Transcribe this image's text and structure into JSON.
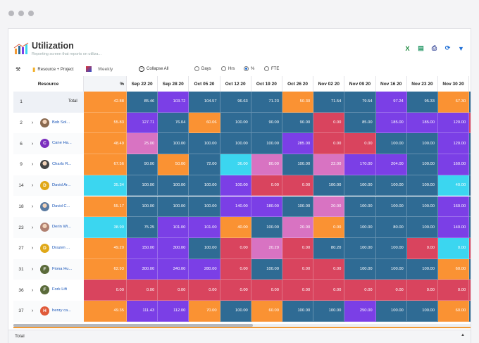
{
  "header": {
    "title": "Utilization",
    "subtitle": "Reporting screen that reports on utiliza..."
  },
  "toolbar": {
    "group_by": "Resource + Project",
    "period": "Weekly",
    "collapse": "Collapse All",
    "units": [
      "Days",
      "Hrs",
      "%",
      "FTE"
    ],
    "selected_unit": "%"
  },
  "grid": {
    "col_resource": "Resource",
    "col_pct": "%",
    "weeks": [
      "Sep 22 20",
      "Sep 28 20",
      "Oct 05 20",
      "Oct 12 20",
      "Oct 19 20",
      "Oct 26 20",
      "Nov 02 20",
      "Nov 09 20",
      "Nov 16 20",
      "Nov 23 20",
      "Nov 30 20",
      "D"
    ],
    "rows": [
      {
        "num": "1",
        "total": true,
        "label": "Total",
        "pct": "42.88",
        "values": [
          "85.46",
          "103.72",
          "104.57",
          "96.63",
          "71.23",
          "50.30",
          "71.54",
          "79.54",
          "97.24",
          "95.33",
          "67.30",
          ""
        ],
        "colors": [
          "teal",
          "purple",
          "teal",
          "teal",
          "teal",
          "orange",
          "teal",
          "teal",
          "purple",
          "teal",
          "orange",
          "teal"
        ]
      },
      {
        "num": "2",
        "label": "Bob Sol...",
        "avatar": "photo",
        "avatar_color": "#8a6a50",
        "pct": "55.83",
        "values": [
          "127.71",
          "76.04",
          "60.06",
          "100.00",
          "90.00",
          "90.00",
          "0.00",
          "85.00",
          "185.00",
          "185.00",
          "120.00",
          ""
        ],
        "colors": [
          "purple",
          "teal",
          "orange",
          "teal",
          "teal",
          "teal",
          "red",
          "teal",
          "purple",
          "purple",
          "purple",
          "red"
        ]
      },
      {
        "num": "6",
        "label": "Cane Ha...",
        "avatar": "C",
        "avatar_color": "#7b2fbe",
        "pct": "48.49",
        "values": [
          "25.00",
          "100.00",
          "100.00",
          "100.00",
          "100.00",
          "285.00",
          "0.00",
          "0.00",
          "100.00",
          "100.00",
          "120.00",
          ""
        ],
        "colors": [
          "pink",
          "teal",
          "teal",
          "teal",
          "teal",
          "purple",
          "red",
          "red",
          "teal",
          "teal",
          "purple",
          "teal"
        ]
      },
      {
        "num": "9",
        "label": "Charls R...",
        "avatar": "photo",
        "avatar_color": "#444",
        "pct": "67.56",
        "values": [
          "90.00",
          "50.00",
          "72.00",
          "36.00",
          "80.00",
          "100.00",
          "22.00",
          "170.00",
          "204.00",
          "100.00",
          "160.00",
          ""
        ],
        "colors": [
          "teal",
          "orange",
          "teal",
          "cyan",
          "pink",
          "teal",
          "pink",
          "purple",
          "purple",
          "teal",
          "purple",
          "teal"
        ]
      },
      {
        "num": "14",
        "label": "David Ar...",
        "avatar": "D",
        "avatar_color": "#e0a818",
        "pct": "35.34",
        "values": [
          "100.00",
          "100.00",
          "100.00",
          "100.00",
          "0.00",
          "0.00",
          "100.00",
          "100.00",
          "100.00",
          "100.00",
          "40.00",
          ""
        ],
        "colors": [
          "teal",
          "teal",
          "teal",
          "purple",
          "red",
          "red",
          "teal",
          "teal",
          "teal",
          "teal",
          "cyan",
          "teal"
        ]
      },
      {
        "num": "18",
        "label": "David C...",
        "avatar": "photo",
        "avatar_color": "#5a7aa0",
        "pct": "55.17",
        "values": [
          "100.00",
          "100.00",
          "100.00",
          "140.00",
          "180.00",
          "100.00",
          "20.00",
          "100.00",
          "100.00",
          "100.00",
          "160.00",
          ""
        ],
        "colors": [
          "teal",
          "teal",
          "teal",
          "purple",
          "purple",
          "teal",
          "pink",
          "teal",
          "teal",
          "teal",
          "purple",
          "teal"
        ]
      },
      {
        "num": "23",
        "label": "Derin Wi...",
        "avatar": "photo",
        "avatar_color": "#b08070",
        "pct": "38.90",
        "values": [
          "75.25",
          "101.00",
          "101.00",
          "40.00",
          "100.00",
          "20.00",
          "0.00",
          "100.00",
          "80.00",
          "100.00",
          "140.00",
          ""
        ],
        "colors": [
          "teal",
          "purple",
          "purple",
          "orange",
          "teal",
          "pink",
          "orange",
          "teal",
          "teal",
          "teal",
          "purple",
          "teal"
        ]
      },
      {
        "num": "27",
        "label": "Drazen ...",
        "avatar": "D",
        "avatar_color": "#e0a818",
        "pct": "49.20",
        "values": [
          "150.00",
          "300.00",
          "100.00",
          "0.00",
          "20.20",
          "0.00",
          "80.20",
          "100.00",
          "100.00",
          "0.00",
          "0.00",
          ""
        ],
        "colors": [
          "purple",
          "purple",
          "teal",
          "red",
          "pink",
          "red",
          "teal",
          "teal",
          "teal",
          "red",
          "cyan",
          "red"
        ]
      },
      {
        "num": "31",
        "label": "Fiona Hu...",
        "avatar": "F",
        "avatar_color": "#5a6a3a",
        "pct": "62.93",
        "values": [
          "300.00",
          "340.00",
          "280.00",
          "0.00",
          "100.00",
          "0.00",
          "0.00",
          "100.00",
          "100.00",
          "100.00",
          "60.00",
          ""
        ],
        "colors": [
          "purple",
          "purple",
          "purple",
          "red",
          "teal",
          "red",
          "red",
          "teal",
          "teal",
          "teal",
          "orange",
          "teal"
        ]
      },
      {
        "num": "36",
        "label": "Fork Lift",
        "avatar": "F",
        "avatar_color": "#5a6a3a",
        "pct": "0.00",
        "values": [
          "0.00",
          "0.00",
          "0.00",
          "0.00",
          "0.00",
          "0.00",
          "0.00",
          "0.00",
          "0.00",
          "0.00",
          "0.00",
          ""
        ],
        "colors": [
          "red",
          "red",
          "red",
          "red",
          "red",
          "red",
          "red",
          "red",
          "red",
          "red",
          "red",
          "red"
        ]
      },
      {
        "num": "37",
        "label": "henry ca...",
        "avatar": "H",
        "avatar_color": "#e05a3a",
        "pct": "49.35",
        "values": [
          "111.43",
          "112.00",
          "70.00",
          "100.00",
          "60.00",
          "100.00",
          "100.00",
          "250.00",
          "100.00",
          "100.00",
          "60.00",
          ""
        ],
        "colors": [
          "purple",
          "purple",
          "orange",
          "teal",
          "orange",
          "teal",
          "teal",
          "purple",
          "teal",
          "teal",
          "orange",
          "teal"
        ]
      }
    ]
  },
  "palette": {
    "teal": "#2f6b94",
    "purple": "#7b3fe6",
    "orange": "#fa9233",
    "red": "#d9445e",
    "pink": "#d873c2",
    "cyan": "#3bd6f0"
  },
  "footer": {
    "label": "Total"
  }
}
